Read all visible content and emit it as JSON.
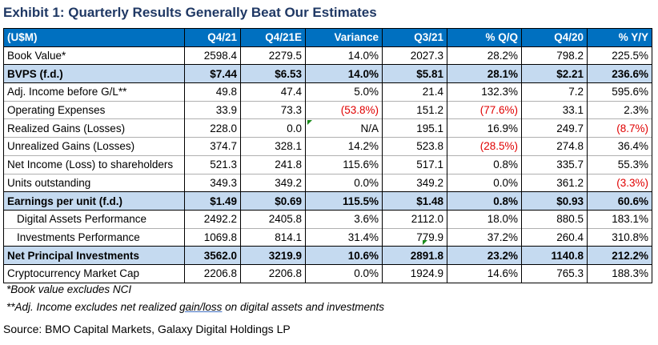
{
  "title": "Exhibit 1: Quarterly Results Generally Beat Our Estimates",
  "columns": [
    "(U$M)",
    "Q4/21",
    "Q4/21E",
    "Variance",
    "Q3/21",
    "% Q/Q",
    "Q4/20",
    "% Y/Y"
  ],
  "rows": [
    {
      "label": "Book Value*",
      "values": [
        "2598.4",
        "2279.5",
        "14.0%",
        "2027.3",
        "28.2%",
        "798.2",
        "225.5%"
      ]
    },
    {
      "label": "BVPS (f.d.)",
      "values": [
        "$7.44",
        "$6.53",
        "14.0%",
        "$5.81",
        "28.1%",
        "$2.21",
        "236.6%"
      ]
    },
    {
      "label": "Adj. Income before G/L**",
      "values": [
        "49.8",
        "47.4",
        "5.0%",
        "21.4",
        "132.3%",
        "7.2",
        "595.6%"
      ]
    },
    {
      "label": "Operating Expenses",
      "values": [
        "33.9",
        "73.3",
        "(53.8%)",
        "151.2",
        "(77.6%)",
        "33.1",
        "2.3%"
      ]
    },
    {
      "label": "Realized Gains (Losses)",
      "values": [
        "228.0",
        "0.0",
        "N/A",
        "195.1",
        "16.9%",
        "249.7",
        "(8.7%)"
      ]
    },
    {
      "label": "Unrealized Gains (Losses)",
      "values": [
        "374.7",
        "328.1",
        "14.2%",
        "523.8",
        "(28.5%)",
        "274.8",
        "36.4%"
      ]
    },
    {
      "label": "Net Income (Loss) to shareholders",
      "values": [
        "521.3",
        "241.8",
        "115.6%",
        "517.1",
        "0.8%",
        "335.7",
        "55.3%"
      ]
    },
    {
      "label": "Units outstanding",
      "values": [
        "349.3",
        "349.2",
        "0.0%",
        "349.2",
        "0.0%",
        "361.2",
        "(3.3%)"
      ]
    },
    {
      "label": "Earnings per unit (f.d.)",
      "values": [
        "$1.49",
        "$0.69",
        "115.5%",
        "$1.48",
        "0.8%",
        "$0.93",
        "60.6%"
      ]
    },
    {
      "label": "Digital Assets Performance",
      "values": [
        "2492.2",
        "2405.8",
        "3.6%",
        "2112.0",
        "18.0%",
        "880.5",
        "183.1%"
      ]
    },
    {
      "label": "Investments Performance",
      "values": [
        "1069.8",
        "814.1",
        "31.4%",
        "779.9",
        "37.2%",
        "260.4",
        "310.8%"
      ]
    },
    {
      "label": "Net Principal Investments",
      "values": [
        "3562.0",
        "3219.9",
        "10.6%",
        "2891.8",
        "23.2%",
        "1140.8",
        "212.2%"
      ]
    },
    {
      "label": "Cryptocurrency Market Cap",
      "values": [
        "2206.8",
        "2206.8",
        "0.0%",
        "1924.9",
        "14.6%",
        "765.3",
        "188.3%"
      ]
    }
  ],
  "footnotes": {
    "book_value": "*Book value excludes NCI",
    "adj_income_pre": "**Adj. Income excludes net realized ",
    "adj_income_ul": "gain/loss",
    "adj_income_post": " on digital assets and investments"
  },
  "source": "Source: BMO Capital Markets, Galaxy Digital Holdings LP",
  "colors": {
    "header_bg": "#0070c0",
    "highlight_bg": "#c5daf0",
    "negative": "#e00000",
    "title": "#1f3864"
  }
}
